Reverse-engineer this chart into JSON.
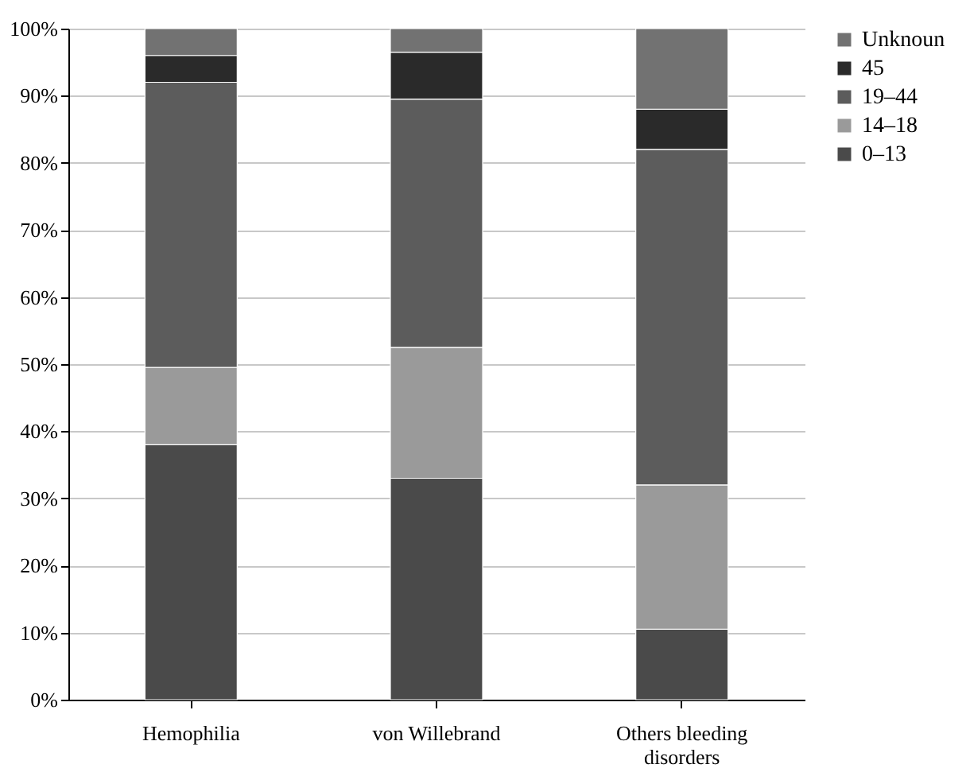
{
  "chart_data": {
    "type": "bar",
    "stacked": true,
    "categories": [
      "Hemophilia",
      "von Willebrand",
      "Others bleeding disorders"
    ],
    "series": [
      {
        "name": "0–13",
        "color": "#4a4a4a",
        "values": [
          38,
          33,
          10.5
        ]
      },
      {
        "name": "14–18",
        "color": "#9a9a9a",
        "values": [
          11.5,
          19.5,
          21.5
        ]
      },
      {
        "name": "19–44",
        "color": "#5c5c5c",
        "values": [
          42.5,
          37,
          50
        ]
      },
      {
        "name": "45",
        "color": "#2a2a2a",
        "values": [
          4,
          7,
          6
        ]
      },
      {
        "name": "Unknoun",
        "color": "#727272",
        "values": [
          4,
          3.5,
          12
        ]
      }
    ],
    "ylim": [
      0,
      100
    ],
    "yticks": [
      {
        "value": 0,
        "label": "0%"
      },
      {
        "value": 10,
        "label": "10%"
      },
      {
        "value": 20,
        "label": "20%"
      },
      {
        "value": 30,
        "label": "30%"
      },
      {
        "value": 40,
        "label": "40%"
      },
      {
        "value": 50,
        "label": "50%"
      },
      {
        "value": 60,
        "label": "60%"
      },
      {
        "value": 70,
        "label": "70%"
      },
      {
        "value": 80,
        "label": "80%"
      },
      {
        "value": 90,
        "label": "90%"
      },
      {
        "value": 100,
        "label": "100%"
      }
    ],
    "grid": "y",
    "legend": "right"
  }
}
